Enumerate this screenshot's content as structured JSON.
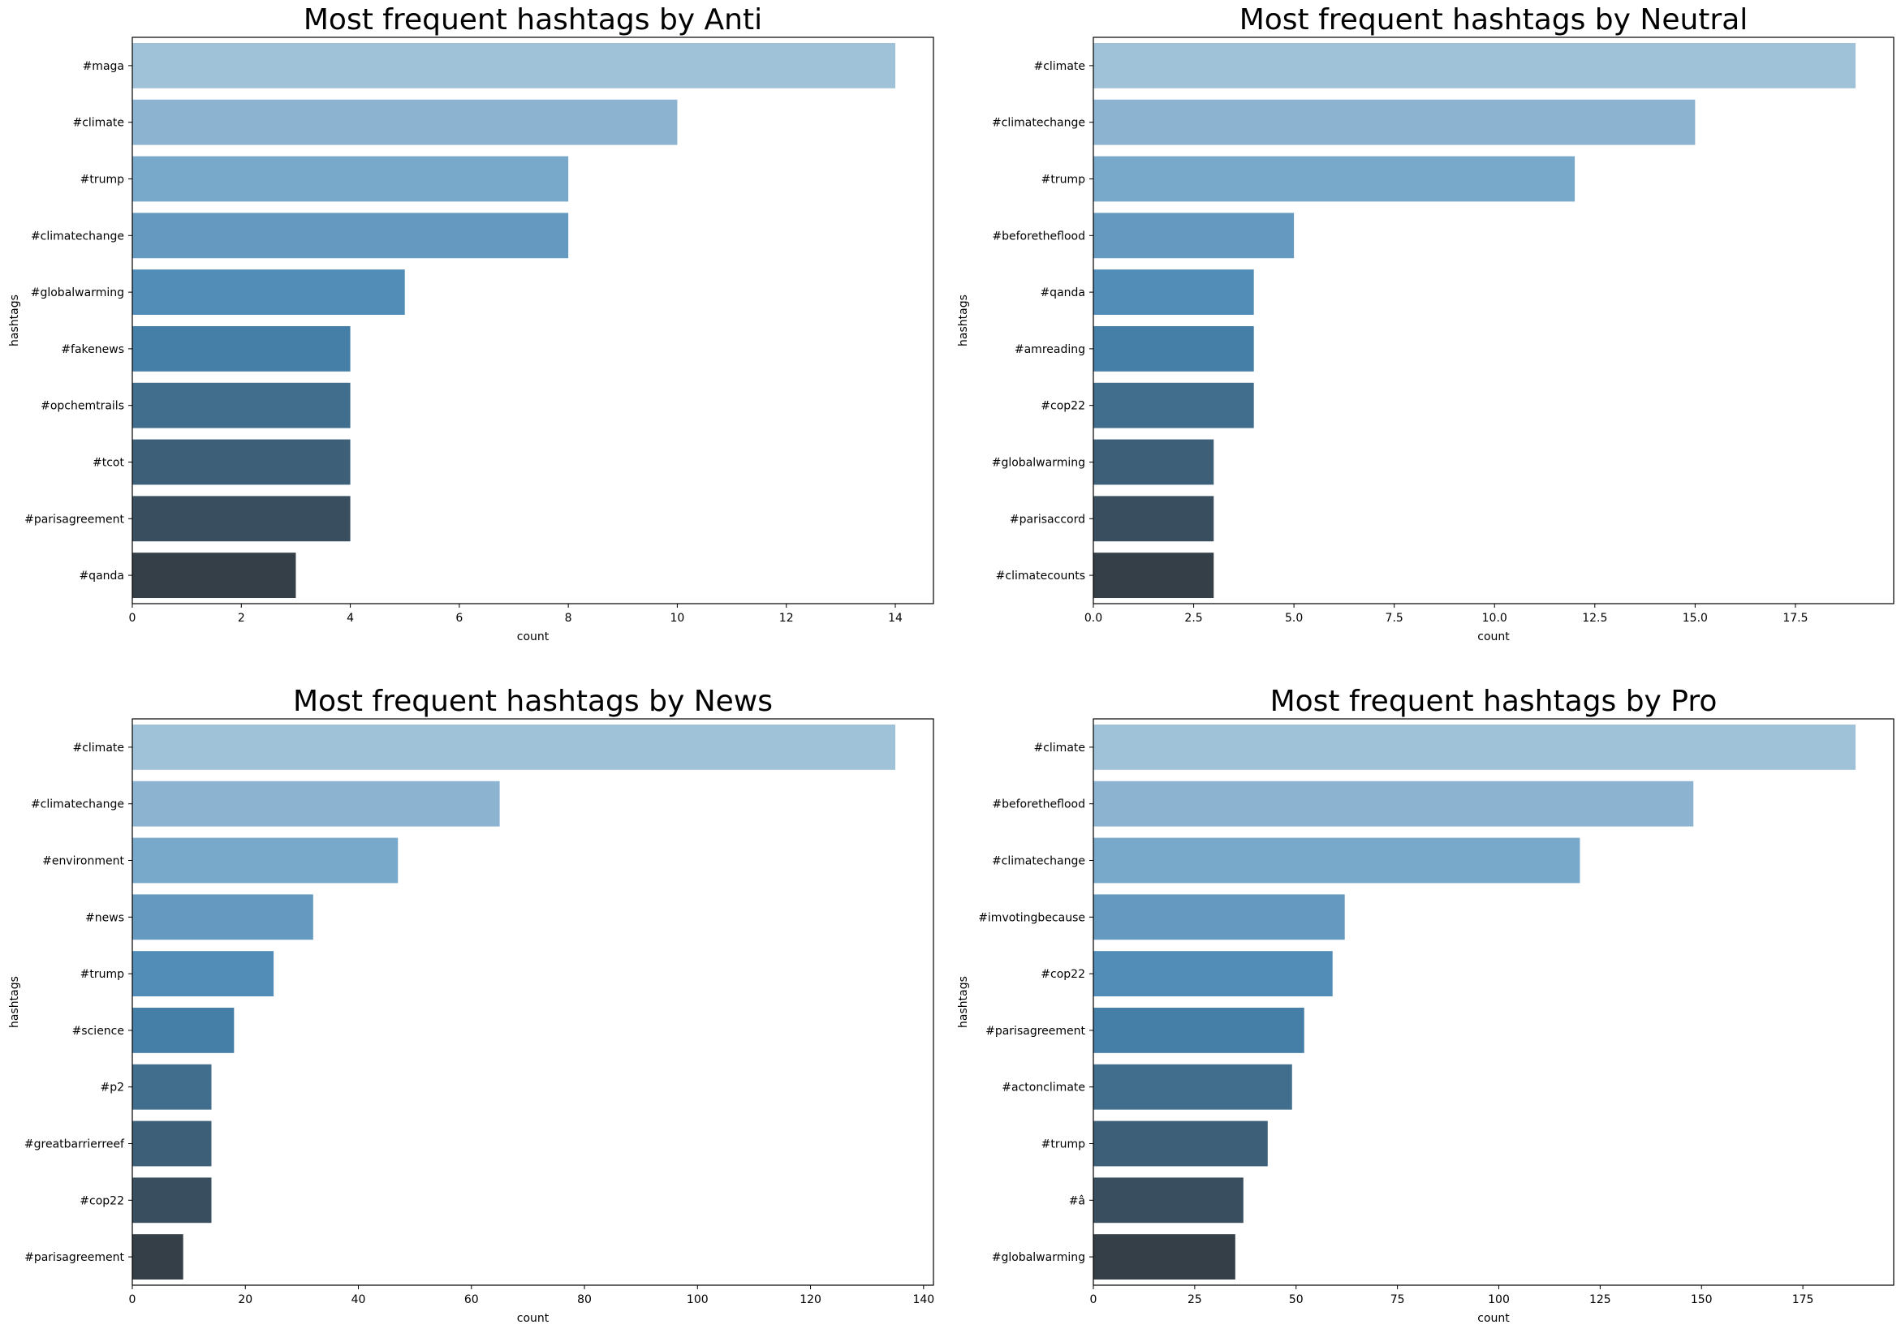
{
  "chart_data": [
    {
      "type": "bar",
      "orientation": "horizontal",
      "title": "Most frequent hashtags by Anti",
      "xlabel": "count",
      "ylabel": "hashtags",
      "categories": [
        "#maga",
        "#climate",
        "#trump",
        "#climatechange",
        "#globalwarming",
        "#fakenews",
        "#opchemtrails",
        "#tcot",
        "#parisagreement",
        "#qanda"
      ],
      "values": [
        14,
        10,
        8,
        8,
        5,
        4,
        4,
        4,
        4,
        3
      ],
      "xlim": [
        0,
        14.7
      ],
      "xticks": [
        0,
        2,
        4,
        6,
        8,
        10,
        12,
        14
      ],
      "xtick_labels": [
        "0",
        "2",
        "4",
        "6",
        "8",
        "10",
        "12",
        "14"
      ],
      "grid": false
    },
    {
      "type": "bar",
      "orientation": "horizontal",
      "title": "Most frequent hashtags by Neutral",
      "xlabel": "count",
      "ylabel": "hashtags",
      "categories": [
        "#climate",
        "#climatechange",
        "#trump",
        "#beforetheflood",
        "#qanda",
        "#amreading",
        "#cop22",
        "#globalwarming",
        "#parisaccord",
        "#climatecounts"
      ],
      "values": [
        19,
        15,
        12,
        5,
        4,
        4,
        4,
        3,
        3,
        3
      ],
      "xlim": [
        0,
        19.95
      ],
      "xticks": [
        0,
        2.5,
        5,
        7.5,
        10,
        12.5,
        15,
        17.5
      ],
      "xtick_labels": [
        "0.0",
        "2.5",
        "5.0",
        "7.5",
        "10.0",
        "12.5",
        "15.0",
        "17.5"
      ],
      "grid": false
    },
    {
      "type": "bar",
      "orientation": "horizontal",
      "title": "Most frequent hashtags by News",
      "xlabel": "count",
      "ylabel": "hashtags",
      "categories": [
        "#climate",
        "#climatechange",
        "#environment",
        "#news",
        "#trump",
        "#science",
        "#p2",
        "#greatbarrierreef",
        "#cop22",
        "#parisagreement"
      ],
      "values": [
        135,
        65,
        47,
        32,
        25,
        18,
        14,
        14,
        14,
        9
      ],
      "xlim": [
        0,
        141.75
      ],
      "xticks": [
        0,
        20,
        40,
        60,
        80,
        100,
        120,
        140
      ],
      "xtick_labels": [
        "0",
        "20",
        "40",
        "60",
        "80",
        "100",
        "120",
        "140"
      ],
      "grid": false
    },
    {
      "type": "bar",
      "orientation": "horizontal",
      "title": "Most frequent hashtags by Pro",
      "xlabel": "count",
      "ylabel": "hashtags",
      "categories": [
        "#climate",
        "#beforetheflood",
        "#climatechange",
        "#imvotingbecause",
        "#cop22",
        "#parisagreement",
        "#actonclimate",
        "#trump",
        "#â",
        "#globalwarming"
      ],
      "values": [
        188,
        148,
        120,
        62,
        59,
        52,
        49,
        43,
        37,
        35
      ],
      "xlim": [
        0,
        197.4
      ],
      "xticks": [
        0,
        25,
        50,
        75,
        100,
        125,
        150,
        175
      ],
      "xtick_labels": [
        "0",
        "25",
        "50",
        "75",
        "100",
        "125",
        "150",
        "175"
      ],
      "grid": false
    }
  ],
  "palette": [
    "#a0c2d8",
    "#8cb4d1",
    "#78a8ca",
    "#6599c0",
    "#528db8",
    "#457ea6",
    "#416e8d",
    "#3d5f78",
    "#394f60",
    "#353f47"
  ]
}
